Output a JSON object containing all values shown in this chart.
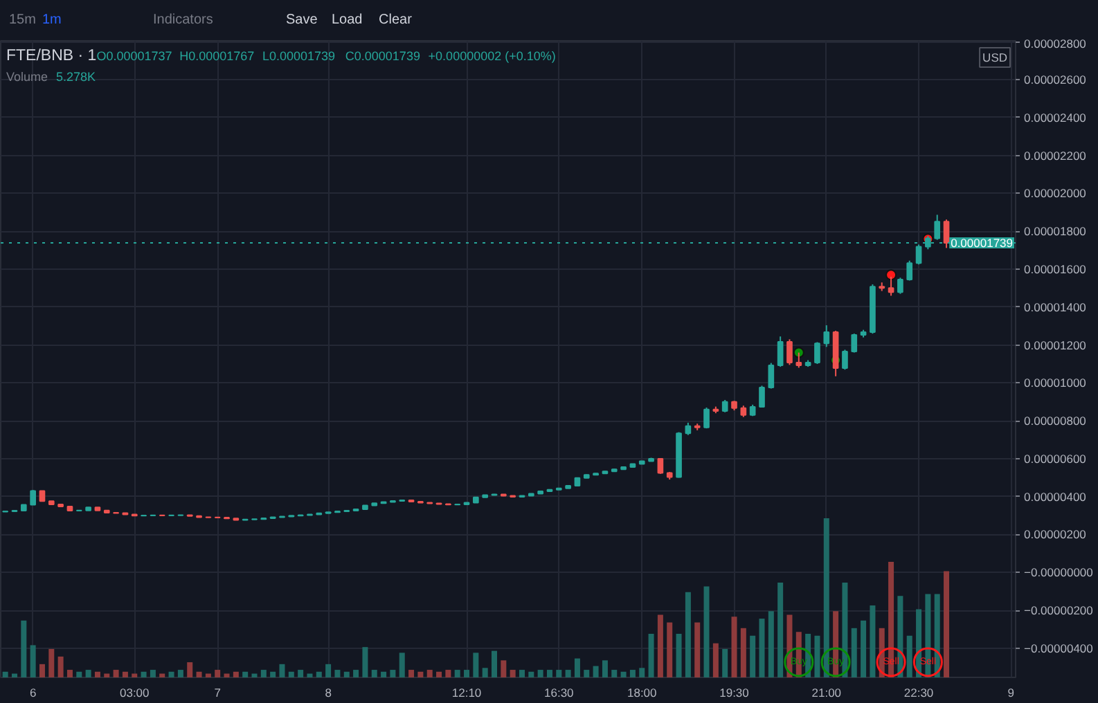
{
  "chart_data": {
    "type": "candlestick",
    "title": "FTE/BNB · 1",
    "annotations": [
      "15m",
      "1m",
      "Indicators",
      "Save",
      "Load",
      "Clear",
      "O0.00001737",
      "H0.00001767",
      "L0.00001739",
      "C0.00001739",
      "+0.00000002 (+0.10%)",
      "Volume",
      "5.278K",
      "USD"
    ],
    "categories": [
      null,
      null,
      null,
      "6",
      null,
      null,
      null,
      null,
      null,
      null,
      null,
      null,
      null,
      null,
      "03:00",
      null,
      null,
      null,
      null,
      null,
      null,
      null,
      null,
      "7",
      null,
      null,
      null,
      null,
      null,
      null,
      null,
      null,
      null,
      null,
      null,
      "8",
      null,
      null,
      null,
      null,
      null,
      null,
      null,
      null,
      null,
      null,
      null,
      null,
      null,
      null,
      "12:10",
      null,
      null,
      null,
      null,
      null,
      null,
      null,
      null,
      null,
      "16:30",
      null,
      null,
      null,
      null,
      null,
      null,
      null,
      null,
      "18:00",
      null,
      null,
      null,
      null,
      null,
      null,
      null,
      null,
      null,
      "19:30",
      null,
      null,
      null,
      null,
      null,
      null,
      null,
      null,
      null,
      "21:00",
      null,
      null,
      null,
      null,
      null,
      null,
      null,
      null,
      null,
      "22:30",
      null,
      null,
      null,
      null,
      null,
      null,
      null,
      null,
      null,
      "9"
    ],
    "ohlc": [
      [
        3.2e-06,
        3.23e-06,
        3.19e-06,
        3.22e-06
      ],
      [
        3.22e-06,
        3.27e-06,
        3.21e-06,
        3.26e-06
      ],
      [
        3.26e-06,
        3.58e-06,
        3.25e-06,
        3.57e-06
      ],
      [
        3.57e-06,
        4.35e-06,
        3.56e-06,
        4.3e-06
      ],
      [
        4.3e-06,
        4.31e-06,
        3.74e-06,
        3.76e-06
      ],
      [
        3.76e-06,
        3.77e-06,
        3.57e-06,
        3.59e-06
      ],
      [
        3.59e-06,
        3.6e-06,
        3.46e-06,
        3.48e-06
      ],
      [
        3.48e-06,
        3.49e-06,
        3.24e-06,
        3.26e-06
      ],
      [
        3.26e-06,
        3.28e-06,
        3.25e-06,
        3.27e-06
      ],
      [
        3.27e-06,
        3.45e-06,
        3.26e-06,
        3.43e-06
      ],
      [
        3.43e-06,
        3.44e-06,
        3.26e-06,
        3.27e-06
      ],
      [
        3.27e-06,
        3.28e-06,
        3.14e-06,
        3.15e-06
      ],
      [
        3.15e-06,
        3.16e-06,
        3.12e-06,
        3.13e-06
      ],
      [
        3.13e-06,
        3.14e-06,
        3.05e-06,
        3.06e-06
      ],
      [
        3.06e-06,
        3.07e-06,
        2.98e-06,
        2.99e-06
      ],
      [
        2.99e-06,
        3.01e-06,
        2.98e-06,
        3e-06
      ],
      [
        3e-06,
        3.02e-06,
        2.99e-06,
        3.01e-06
      ],
      [
        3.01e-06,
        3.02e-06,
        2.99e-06,
        3e-06
      ],
      [
        3e-06,
        3.02e-06,
        2.99e-06,
        3.01e-06
      ],
      [
        3.01e-06,
        3.04e-06,
        3e-06,
        3.02e-06
      ],
      [
        3.02e-06,
        3.03e-06,
        2.97e-06,
        2.98e-06
      ],
      [
        2.98e-06,
        2.99e-06,
        2.9e-06,
        2.91e-06
      ],
      [
        2.91e-06,
        2.92e-06,
        2.89e-06,
        2.9e-06
      ],
      [
        2.9e-06,
        2.91e-06,
        2.88e-06,
        2.89e-06
      ],
      [
        2.89e-06,
        2.9e-06,
        2.84e-06,
        2.85e-06
      ],
      [
        2.85e-06,
        2.86e-06,
        2.76e-06,
        2.77e-06
      ],
      [
        2.77e-06,
        2.8e-06,
        2.76e-06,
        2.79e-06
      ],
      [
        2.79e-06,
        2.82e-06,
        2.78e-06,
        2.81e-06
      ],
      [
        2.81e-06,
        2.87e-06,
        2.8e-06,
        2.86e-06
      ],
      [
        2.86e-06,
        2.92e-06,
        2.85e-06,
        2.91e-06
      ],
      [
        2.91e-06,
        2.96e-06,
        2.9e-06,
        2.95e-06
      ],
      [
        2.95e-06,
        3e-06,
        2.94e-06,
        2.99e-06
      ],
      [
        2.99e-06,
        3.03e-06,
        2.98e-06,
        3.02e-06
      ],
      [
        3.02e-06,
        3.07e-06,
        3.01e-06,
        3.06e-06
      ],
      [
        3.06e-06,
        3.13e-06,
        3.05e-06,
        3.12e-06
      ],
      [
        3.12e-06,
        3.19e-06,
        3.11e-06,
        3.18e-06
      ],
      [
        3.18e-06,
        3.23e-06,
        3.17e-06,
        3.22e-06
      ],
      [
        3.22e-06,
        3.27e-06,
        3.21e-06,
        3.26e-06
      ],
      [
        3.26e-06,
        3.34e-06,
        3.25e-06,
        3.33e-06
      ],
      [
        3.33e-06,
        3.55e-06,
        3.32e-06,
        3.53e-06
      ],
      [
        3.53e-06,
        3.66e-06,
        3.52e-06,
        3.65e-06
      ],
      [
        3.65e-06,
        3.73e-06,
        3.64e-06,
        3.72e-06
      ],
      [
        3.72e-06,
        3.78e-06,
        3.71e-06,
        3.77e-06
      ],
      [
        3.77e-06,
        3.83e-06,
        3.76e-06,
        3.81e-06
      ],
      [
        3.81e-06,
        3.82e-06,
        3.72e-06,
        3.73e-06
      ],
      [
        3.73e-06,
        3.74e-06,
        3.67e-06,
        3.68e-06
      ],
      [
        3.68e-06,
        3.69e-06,
        3.63e-06,
        3.64e-06
      ],
      [
        3.64e-06,
        3.65e-06,
        3.6e-06,
        3.61e-06
      ],
      [
        3.61e-06,
        3.62e-06,
        3.56e-06,
        3.58e-06
      ],
      [
        3.58e-06,
        3.6e-06,
        3.57e-06,
        3.59e-06
      ],
      [
        3.59e-06,
        3.7e-06,
        3.58e-06,
        3.68e-06
      ],
      [
        3.68e-06,
        3.98e-06,
        3.67e-06,
        3.96e-06
      ],
      [
        3.96e-06,
        4.1e-06,
        3.95e-06,
        4.08e-06
      ],
      [
        4.08e-06,
        4.14e-06,
        4.07e-06,
        4.12e-06
      ],
      [
        4.12e-06,
        4.13e-06,
        4.02e-06,
        4.04e-06
      ],
      [
        4.04e-06,
        4.05e-06,
        3.97e-06,
        3.99e-06
      ],
      [
        3.99e-06,
        4.06e-06,
        3.98e-06,
        4.04e-06
      ],
      [
        4.04e-06,
        4.17e-06,
        4.03e-06,
        4.15e-06
      ],
      [
        4.15e-06,
        4.3e-06,
        4.14e-06,
        4.28e-06
      ],
      [
        4.28e-06,
        4.38e-06,
        4.27e-06,
        4.36e-06
      ],
      [
        4.36e-06,
        4.46e-06,
        4.35e-06,
        4.44e-06
      ],
      [
        4.44e-06,
        4.59e-06,
        4.43e-06,
        4.57e-06
      ],
      [
        4.57e-06,
        5e-06,
        4.56e-06,
        4.98e-06
      ],
      [
        4.98e-06,
        5.17e-06,
        4.97e-06,
        5.15e-06
      ],
      [
        5.15e-06,
        5.24e-06,
        5.14e-06,
        5.22e-06
      ],
      [
        5.22e-06,
        5.35e-06,
        5.21e-06,
        5.33e-06
      ],
      [
        5.33e-06,
        5.46e-06,
        5.32e-06,
        5.44e-06
      ],
      [
        5.44e-06,
        5.58e-06,
        5.43e-06,
        5.56e-06
      ],
      [
        5.56e-06,
        5.74e-06,
        5.55e-06,
        5.72e-06
      ],
      [
        5.72e-06,
        5.89e-06,
        5.71e-06,
        5.87e-06
      ],
      [
        5.87e-06,
        6.05e-06,
        5.86e-06,
        6e-06
      ],
      [
        6e-06,
        6.02e-06,
        5.2e-06,
        5.25e-06
      ],
      [
        5.25e-06,
        5.3e-06,
        4.9e-06,
        5.03e-06
      ],
      [
        5.03e-06,
        7.4e-06,
        5e-06,
        7.34e-06
      ],
      [
        7.34e-06,
        7.9e-06,
        7.25e-06,
        7.72e-06
      ],
      [
        7.72e-06,
        7.85e-06,
        7.5e-06,
        7.65e-06
      ],
      [
        7.65e-06,
        8.7e-06,
        7.6e-06,
        8.6e-06
      ],
      [
        8.6e-06,
        8.75e-06,
        8.4e-06,
        8.52e-06
      ],
      [
        8.52e-06,
        9.1e-06,
        8.45e-06,
        9e-06
      ],
      [
        9e-06,
        9.05e-06,
        8.55e-06,
        8.67e-06
      ],
      [
        8.67e-06,
        8.8e-06,
        8.2e-06,
        8.31e-06
      ],
      [
        8.31e-06,
        8.85e-06,
        8.25e-06,
        8.74e-06
      ],
      [
        8.74e-06,
        9.85e-06,
        8.7e-06,
        9.76e-06
      ],
      [
        9.76e-06,
        1.105e-05,
        9.7e-06,
        1.093e-05
      ],
      [
        1.093e-05,
        1.245e-05,
        1.085e-05,
        1.217e-05
      ],
      [
        1.217e-05,
        1.23e-05,
        1.095e-05,
        1.107e-05
      ],
      [
        1.107e-05,
        1.16e-05,
        1.08e-05,
        1.093e-05
      ],
      [
        1.093e-05,
        1.12e-05,
        1.085e-05,
        1.107e-05
      ],
      [
        1.107e-05,
        1.215e-05,
        1.1e-05,
        1.209e-05
      ],
      [
        1.209e-05,
        1.304e-05,
        1.19e-05,
        1.268e-05
      ],
      [
        1.268e-05,
        1.275e-05,
        1.035e-05,
        1.078e-05
      ],
      [
        1.078e-05,
        1.175e-05,
        1.07e-05,
        1.166e-05
      ],
      [
        1.166e-05,
        1.26e-05,
        1.16e-05,
        1.253e-05
      ],
      [
        1.253e-05,
        1.28e-05,
        1.24e-05,
        1.268e-05
      ],
      [
        1.268e-05,
        1.52e-05,
        1.26e-05,
        1.508e-05
      ],
      [
        1.508e-05,
        1.53e-05,
        1.485e-05,
        1.501e-05
      ],
      [
        1.501e-05,
        1.56e-05,
        1.46e-05,
        1.479e-05
      ],
      [
        1.479e-05,
        1.555e-05,
        1.47e-05,
        1.545e-05
      ],
      [
        1.545e-05,
        1.645e-05,
        1.54e-05,
        1.632e-05
      ],
      [
        1.632e-05,
        1.73e-05,
        1.625e-05,
        1.719e-05
      ],
      [
        1.719e-05,
        1.775e-05,
        1.705e-05,
        1.763e-05
      ],
      [
        1.763e-05,
        1.887e-05,
        1.755e-05,
        1.851e-05
      ],
      [
        1.851e-05,
        1.862e-05,
        1.712e-05,
        1.739e-05
      ],
      null,
      null,
      null,
      null,
      null,
      null,
      null
    ],
    "colors": [
      "#26a69a",
      "#26a69a",
      "#26a69a",
      "#26a69a",
      "#ef5350",
      "#ef5350",
      "#ef5350",
      "#ef5350",
      "#26a69a",
      "#26a69a",
      "#ef5350",
      "#ef5350",
      "#ef5350",
      "#ef5350",
      "#ef5350",
      "#26a69a",
      "#26a69a",
      "#ef5350",
      "#26a69a",
      "#26a69a",
      "#ef5350",
      "#ef5350",
      "#ef5350",
      "#ef5350",
      "#ef5350",
      "#ef5350",
      "#26a69a",
      "#26a69a",
      "#26a69a",
      "#26a69a",
      "#26a69a",
      "#26a69a",
      "#26a69a",
      "#26a69a",
      "#26a69a",
      "#26a69a",
      "#26a69a",
      "#26a69a",
      "#26a69a",
      "#26a69a",
      "#26a69a",
      "#26a69a",
      "#26a69a",
      "#26a69a",
      "#ef5350",
      "#ef5350",
      "#ef5350",
      "#ef5350",
      "#ef5350",
      "#26a69a",
      "#26a69a",
      "#26a69a",
      "#26a69a",
      "#26a69a",
      "#ef5350",
      "#ef5350",
      "#26a69a",
      "#26a69a",
      "#26a69a",
      "#26a69a",
      "#26a69a",
      "#26a69a",
      "#26a69a",
      "#26a69a",
      "#26a69a",
      "#26a69a",
      "#26a69a",
      "#26a69a",
      "#26a69a",
      "#26a69a",
      "#26a69a",
      "#ef5350",
      "#ef5350",
      "#26a69a",
      "#26a69a",
      "#ef5350",
      "#26a69a",
      "#ef5350",
      "#26a69a",
      "#ef5350",
      "#ef5350",
      "#26a69a",
      "#26a69a",
      "#26a69a",
      "#26a69a",
      "#ef5350",
      "#ef5350",
      "#26a69a",
      "#26a69a",
      "#26a69a",
      "#ef5350",
      "#26a69a",
      "#26a69a",
      "#26a69a",
      "#26a69a",
      "#ef5350",
      "#ef5350",
      "#26a69a",
      "#26a69a",
      "#26a69a",
      "#26a69a",
      "#26a69a",
      "#ef5350",
      null,
      null,
      null,
      null,
      null,
      null,
      null
    ],
    "series": [
      {
        "type": "bar",
        "values": [
          3e-07,
          2e-07,
          3e-06,
          1.7e-06,
          7e-07,
          1.5e-06,
          1.1e-06,
          4e-07,
          3e-07,
          4e-07,
          3e-07,
          2e-07,
          4e-07,
          3e-07,
          2e-07,
          3e-07,
          4e-07,
          2e-07,
          3e-07,
          4e-07,
          8e-07,
          3e-07,
          2e-07,
          4e-07,
          2e-07,
          3e-07,
          3e-07,
          2e-07,
          4e-07,
          3e-07,
          7e-07,
          3e-07,
          4e-07,
          2e-07,
          3e-07,
          7e-07,
          4e-07,
          3e-07,
          4e-07,
          1.6e-06,
          4e-07,
          3e-07,
          4e-07,
          1.3e-06,
          4e-07,
          3e-07,
          4e-07,
          3e-07,
          4e-07,
          4e-07,
          4e-07,
          1.3e-06,
          5e-07,
          1.4e-06,
          9e-07,
          4e-07,
          4e-07,
          3e-07,
          4e-07,
          4e-07,
          4e-07,
          4e-07,
          1e-06,
          4e-07,
          6e-07,
          9e-07,
          4e-07,
          3e-07,
          4e-07,
          5e-07,
          2.3e-06,
          3.3e-06,
          2.9e-06,
          2.3e-06,
          4.5e-06,
          2.9e-06,
          4.8e-06,
          1.8e-06,
          1.5e-06,
          3.2e-06,
          2.6e-06,
          2.2e-06,
          3.1e-06,
          3.5e-06,
          5e-06,
          3.3e-06,
          2.4e-06,
          2.3e-06,
          2.2e-06,
          8.4e-06,
          3.5e-06,
          5e-06,
          2.6e-06,
          3e-06,
          3.8e-06,
          2.6e-06,
          6.1e-06,
          4.3e-06,
          2.2e-06,
          3.6e-06,
          4.4e-06,
          4.4e-06,
          5.6e-06,
          null,
          null,
          null,
          null,
          null,
          null,
          null
        ],
        "base": [
          -5.54e-06,
          -5.54e-06,
          -5.54e-06,
          -5.54e-06,
          -5.54e-06,
          -5.54e-06,
          -5.54e-06,
          -5.54e-06,
          -5.54e-06,
          -5.54e-06,
          -5.54e-06,
          -5.54e-06,
          -5.54e-06,
          -5.54e-06,
          -5.54e-06,
          -5.54e-06,
          -5.54e-06,
          -5.54e-06,
          -5.54e-06,
          -5.54e-06,
          -5.54e-06,
          -5.54e-06,
          -5.54e-06,
          -5.54e-06,
          -5.54e-06,
          -5.54e-06,
          -5.54e-06,
          -5.54e-06,
          -5.54e-06,
          -5.54e-06,
          -5.54e-06,
          -5.54e-06,
          -5.54e-06,
          -5.54e-06,
          -5.54e-06,
          -5.54e-06,
          -5.54e-06,
          -5.54e-06,
          -5.54e-06,
          -5.54e-06,
          -5.54e-06,
          -5.54e-06,
          -5.54e-06,
          -5.54e-06,
          -5.54e-06,
          -5.54e-06,
          -5.54e-06,
          -5.54e-06,
          -5.54e-06,
          -5.54e-06,
          -5.54e-06,
          -5.54e-06,
          -5.54e-06,
          -5.54e-06,
          -5.54e-06,
          -5.54e-06,
          -5.54e-06,
          -5.54e-06,
          -5.54e-06,
          -5.54e-06,
          -5.54e-06,
          -5.54e-06,
          -5.54e-06,
          -5.54e-06,
          -5.54e-06,
          -5.54e-06,
          -5.54e-06,
          -5.54e-06,
          -5.54e-06,
          -5.54e-06,
          -5.54e-06,
          -5.54e-06,
          -5.54e-06,
          -5.54e-06,
          -5.54e-06,
          -5.54e-06,
          -5.54e-06,
          -5.54e-06,
          -5.54e-06,
          -5.54e-06,
          -5.54e-06,
          -5.54e-06,
          -5.54e-06,
          -5.54e-06,
          -5.54e-06,
          -5.54e-06,
          -5.54e-06,
          -5.54e-06,
          -5.54e-06,
          -5.54e-06,
          -5.54e-06,
          -5.54e-06,
          -5.54e-06,
          -5.54e-06,
          -5.54e-06,
          -5.54e-06,
          -5.54e-06,
          -5.54e-06,
          -5.54e-06,
          -5.54e-06,
          -5.54e-06,
          -5.54e-06,
          -5.54e-06,
          null,
          null,
          null,
          null,
          null,
          null,
          null
        ],
        "colors": [
          "#1f6b66",
          "#1f6b66",
          "#1f6b66",
          "#1f6b66",
          "#8f3b3c",
          "#8f3b3c",
          "#8f3b3c",
          "#8f3b3c",
          "#1f6b66",
          "#1f6b66",
          "#8f3b3c",
          "#8f3b3c",
          "#8f3b3c",
          "#8f3b3c",
          "#8f3b3c",
          "#1f6b66",
          "#1f6b66",
          "#8f3b3c",
          "#1f6b66",
          "#1f6b66",
          "#8f3b3c",
          "#8f3b3c",
          "#8f3b3c",
          "#8f3b3c",
          "#8f3b3c",
          "#8f3b3c",
          "#1f6b66",
          "#1f6b66",
          "#1f6b66",
          "#1f6b66",
          "#1f6b66",
          "#1f6b66",
          "#1f6b66",
          "#1f6b66",
          "#1f6b66",
          "#1f6b66",
          "#1f6b66",
          "#1f6b66",
          "#1f6b66",
          "#1f6b66",
          "#1f6b66",
          "#1f6b66",
          "#1f6b66",
          "#1f6b66",
          "#8f3b3c",
          "#8f3b3c",
          "#8f3b3c",
          "#8f3b3c",
          "#8f3b3c",
          "#1f6b66",
          "#1f6b66",
          "#1f6b66",
          "#1f6b66",
          "#1f6b66",
          "#8f3b3c",
          "#8f3b3c",
          "#1f6b66",
          "#1f6b66",
          "#1f6b66",
          "#1f6b66",
          "#1f6b66",
          "#1f6b66",
          "#1f6b66",
          "#1f6b66",
          "#1f6b66",
          "#1f6b66",
          "#1f6b66",
          "#1f6b66",
          "#1f6b66",
          "#1f6b66",
          "#1f6b66",
          "#8f3b3c",
          "#8f3b3c",
          "#1f6b66",
          "#1f6b66",
          "#8f3b3c",
          "#1f6b66",
          "#8f3b3c",
          "#1f6b66",
          "#8f3b3c",
          "#8f3b3c",
          "#1f6b66",
          "#1f6b66",
          "#1f6b66",
          "#1f6b66",
          "#8f3b3c",
          "#8f3b3c",
          "#1f6b66",
          "#1f6b66",
          "#1f6b66",
          "#8f3b3c",
          "#1f6b66",
          "#1f6b66",
          "#1f6b66",
          "#1f6b66",
          "#8f3b3c",
          "#8f3b3c",
          "#1f6b66",
          "#1f6b66",
          "#1f6b66",
          "#1f6b66",
          "#1f6b66",
          "#8f3b3c",
          null,
          null,
          null,
          null,
          null,
          null,
          null
        ]
      },
      {
        "type": "scatter",
        "name": "Buy",
        "color": "#0a8f0a",
        "values": [
          null,
          null,
          null,
          null,
          null,
          null,
          null,
          null,
          null,
          null,
          null,
          null,
          null,
          null,
          null,
          null,
          null,
          null,
          null,
          null,
          null,
          null,
          null,
          null,
          null,
          null,
          null,
          null,
          null,
          null,
          null,
          null,
          null,
          null,
          null,
          null,
          null,
          null,
          null,
          null,
          null,
          null,
          null,
          null,
          null,
          null,
          null,
          null,
          null,
          null,
          null,
          null,
          null,
          null,
          null,
          null,
          null,
          null,
          null,
          null,
          null,
          null,
          null,
          null,
          null,
          null,
          null,
          null,
          null,
          null,
          null,
          null,
          null,
          null,
          null,
          null,
          null,
          null,
          null,
          null,
          null,
          null,
          null,
          null,
          null,
          null,
          1.16e-05,
          null,
          null,
          null,
          1.12e-05,
          null,
          null,
          null,
          null,
          null,
          null,
          null,
          null,
          null,
          null,
          null,
          null,
          null,
          null,
          null,
          null,
          null,
          null,
          null
        ]
      },
      {
        "type": "scatter",
        "name": "Sell",
        "color": "#ff1a1a",
        "values": [
          null,
          null,
          null,
          null,
          null,
          null,
          null,
          null,
          null,
          null,
          null,
          null,
          null,
          null,
          null,
          null,
          null,
          null,
          null,
          null,
          null,
          null,
          null,
          null,
          null,
          null,
          null,
          null,
          null,
          null,
          null,
          null,
          null,
          null,
          null,
          null,
          null,
          null,
          null,
          null,
          null,
          null,
          null,
          null,
          null,
          null,
          null,
          null,
          null,
          null,
          null,
          null,
          null,
          null,
          null,
          null,
          null,
          null,
          null,
          null,
          null,
          null,
          null,
          null,
          null,
          null,
          null,
          null,
          null,
          null,
          null,
          null,
          null,
          null,
          null,
          null,
          null,
          null,
          null,
          null,
          null,
          null,
          null,
          null,
          null,
          null,
          null,
          null,
          null,
          null,
          null,
          null,
          null,
          null,
          null,
          null,
          1.57e-05,
          null,
          null,
          null,
          1.76e-05,
          null,
          null,
          null,
          null,
          null,
          null,
          null,
          null,
          null
        ]
      }
    ],
    "marker": "circle",
    "ylim": [
      -5.54e-06,
      2.805e-05
    ],
    "yticks": [
      {
        "value": -4e-06,
        "label": "−0.00000400"
      },
      {
        "value": -2e-06,
        "label": "−0.00000200"
      },
      {
        "value": 0,
        "label": "−0.00000000"
      },
      {
        "value": 2e-06,
        "label": "0.00000200"
      },
      {
        "value": 4e-06,
        "label": "0.00000400"
      },
      {
        "value": 6e-06,
        "label": "0.00000600"
      },
      {
        "value": 8e-06,
        "label": "0.00000800"
      },
      {
        "value": 1e-05,
        "label": "0.00001000"
      },
      {
        "value": 1.2e-05,
        "label": "0.00001200"
      },
      {
        "value": 1.4e-05,
        "label": "0.00001400"
      },
      {
        "value": 1.6e-05,
        "label": "0.00001600"
      },
      {
        "value": 1.8e-05,
        "label": "0.00001800"
      },
      {
        "value": 2e-05,
        "label": "0.00002000"
      },
      {
        "value": 2.2e-05,
        "label": "0.00002200"
      },
      {
        "value": 2.4e-05,
        "label": "0.00002400"
      },
      {
        "value": 2.6e-05,
        "label": "0.00002600"
      },
      {
        "value": 2.8e-05,
        "label": "0.00002800"
      }
    ],
    "ref_lines": [
      {
        "axis": "y",
        "value": 1.739e-05,
        "label": "0.00001739",
        "color": "#26a69a",
        "line_style": "dotted"
      }
    ],
    "grid": true
  }
}
